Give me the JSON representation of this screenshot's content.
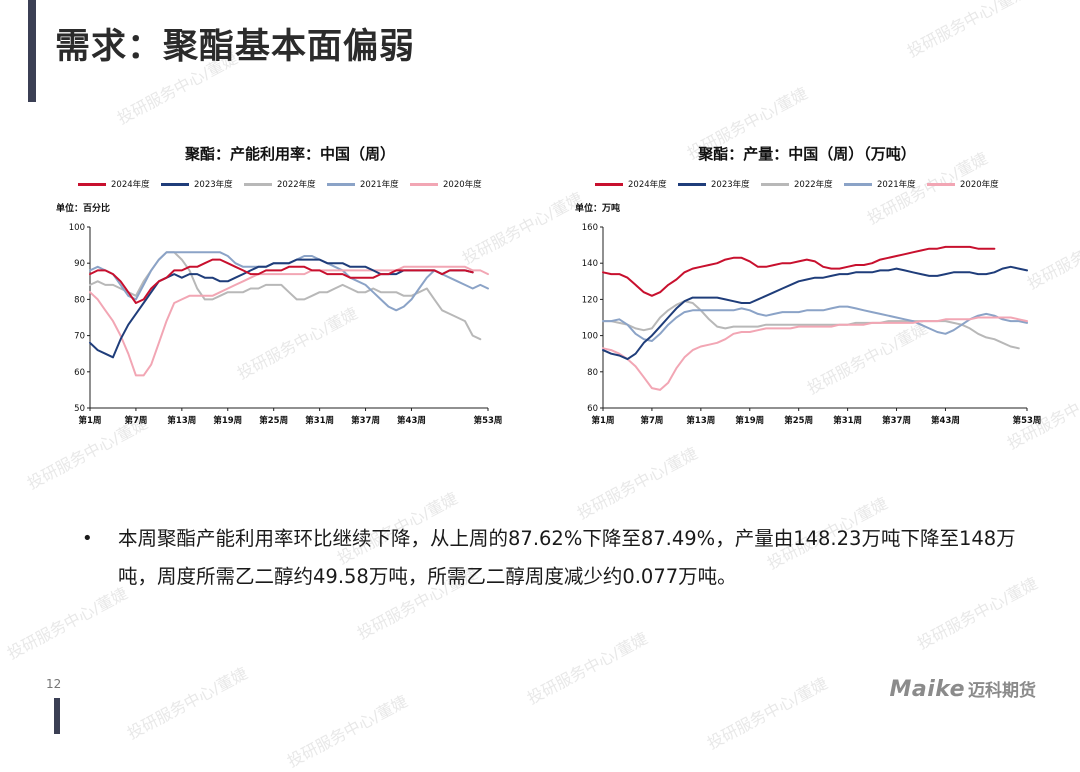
{
  "page": {
    "title": "需求：聚酯基本面偏弱",
    "page_number": "12",
    "brand_latin": "Maike",
    "brand_cn": "迈科期货",
    "watermark": "投研服务中心/董婕"
  },
  "bullets": [
    "本周聚酯产能利用率环比继续下降，从上周的87.62%下降至87.49%，产量由148.23万吨下降至148万吨，周度所需乙二醇约49.58万吨，所需乙二醇周度减少约0.077万吨。"
  ],
  "chart_data": [
    {
      "type": "line",
      "title": "聚酯：产能利用率：中国（周）",
      "unit_label": "单位：百分比",
      "xlabel": "",
      "ylabel": "",
      "x_range": [
        1,
        53
      ],
      "x_tick_values": [
        1,
        7,
        13,
        19,
        25,
        31,
        37,
        43,
        53
      ],
      "x_tick_labels": [
        "第1周",
        "第7周",
        "第13周",
        "第19周",
        "第25周",
        "第31周",
        "第37周",
        "第43周",
        "第53周"
      ],
      "ylim": [
        50,
        100
      ],
      "y_ticks": [
        50,
        60,
        70,
        80,
        90,
        100
      ],
      "grid": false,
      "legend_position": "top",
      "series": [
        {
          "name": "2024年度",
          "color": "#c8102e",
          "x": [
            1,
            2,
            3,
            4,
            5,
            6,
            7,
            8,
            9,
            10,
            11,
            12,
            13,
            14,
            15,
            16,
            17,
            18,
            19,
            20,
            21,
            22,
            23,
            24,
            25,
            26,
            27,
            28,
            29,
            30,
            31,
            32,
            33,
            34,
            35,
            36,
            37,
            38,
            39,
            40,
            41,
            42,
            43,
            44,
            45,
            46,
            47,
            48,
            49,
            50,
            51
          ],
          "values": [
            87,
            88,
            88,
            87,
            85,
            82,
            79,
            80,
            83,
            85,
            86,
            88,
            88,
            89,
            89,
            90,
            91,
            91,
            90,
            89,
            88,
            87,
            87,
            88,
            88,
            88,
            89,
            89,
            89,
            88,
            88,
            87,
            87,
            87,
            86,
            86,
            86,
            86,
            87,
            87,
            88,
            88,
            88,
            88,
            88,
            88,
            87,
            88,
            88,
            88,
            87.5
          ]
        },
        {
          "name": "2023年度",
          "color": "#1f3d7a",
          "x": [
            1,
            2,
            3,
            4,
            5,
            6,
            7,
            8,
            9,
            10,
            11,
            12,
            13,
            14,
            15,
            16,
            17,
            18,
            19,
            20,
            21,
            22,
            23,
            24,
            25,
            26,
            27,
            28,
            29,
            30,
            31,
            32,
            33,
            34,
            35,
            36,
            37,
            38,
            39,
            40,
            41,
            42,
            43,
            44,
            45,
            46,
            47,
            48,
            49,
            50,
            51
          ],
          "values": [
            68,
            66,
            65,
            64,
            69,
            73,
            76,
            79,
            82,
            85,
            86,
            87,
            86,
            87,
            87,
            86,
            86,
            85,
            85,
            86,
            87,
            88,
            89,
            89,
            90,
            90,
            90,
            91,
            91,
            91,
            91,
            90,
            90,
            90,
            89,
            89,
            89,
            88,
            87,
            87,
            87,
            88,
            88,
            88,
            88,
            88,
            87,
            88,
            88,
            88,
            87.5
          ]
        },
        {
          "name": "2022年度",
          "color": "#b8b8b8",
          "x": [
            1,
            2,
            3,
            4,
            5,
            6,
            7,
            8,
            9,
            10,
            11,
            12,
            13,
            14,
            15,
            16,
            17,
            18,
            19,
            20,
            21,
            22,
            23,
            24,
            25,
            26,
            27,
            28,
            29,
            30,
            31,
            32,
            33,
            34,
            35,
            36,
            37,
            38,
            39,
            40,
            41,
            42,
            43,
            44,
            45,
            46,
            47,
            48,
            49,
            50,
            51,
            52
          ],
          "values": [
            84,
            85,
            84,
            84,
            83,
            82,
            81,
            85,
            88,
            91,
            93,
            93,
            91,
            88,
            83,
            80,
            80,
            81,
            82,
            82,
            82,
            83,
            83,
            84,
            84,
            84,
            82,
            80,
            80,
            81,
            82,
            82,
            83,
            84,
            83,
            82,
            82,
            83,
            82,
            82,
            82,
            81,
            81,
            82,
            83,
            80,
            77,
            76,
            75,
            74,
            70,
            69
          ]
        },
        {
          "name": "2021年度",
          "color": "#8ba3c7",
          "x": [
            1,
            2,
            3,
            4,
            5,
            6,
            7,
            8,
            9,
            10,
            11,
            12,
            13,
            14,
            15,
            16,
            17,
            18,
            19,
            20,
            21,
            22,
            23,
            24,
            25,
            26,
            27,
            28,
            29,
            30,
            31,
            32,
            33,
            34,
            35,
            36,
            37,
            38,
            39,
            40,
            41,
            42,
            43,
            44,
            45,
            46,
            47,
            48,
            49,
            50,
            51,
            52,
            53
          ],
          "values": [
            88,
            89,
            88,
            87,
            84,
            81,
            80,
            84,
            88,
            91,
            93,
            93,
            93,
            93,
            93,
            93,
            93,
            93,
            92,
            90,
            89,
            89,
            89,
            89,
            90,
            90,
            90,
            91,
            92,
            92,
            91,
            90,
            89,
            88,
            86,
            85,
            84,
            82,
            80,
            78,
            77,
            78,
            80,
            83,
            86,
            88,
            87,
            86,
            85,
            84,
            83,
            84,
            83
          ]
        },
        {
          "name": "2020年度",
          "color": "#f2a6b4",
          "x": [
            1,
            2,
            3,
            4,
            5,
            6,
            7,
            8,
            9,
            10,
            11,
            12,
            13,
            14,
            15,
            16,
            17,
            18,
            19,
            20,
            21,
            22,
            23,
            24,
            25,
            26,
            27,
            28,
            29,
            30,
            31,
            32,
            33,
            34,
            35,
            36,
            37,
            38,
            39,
            40,
            41,
            42,
            43,
            44,
            45,
            46,
            47,
            48,
            49,
            50,
            51,
            52,
            53
          ],
          "values": [
            82,
            80,
            77,
            74,
            70,
            65,
            59,
            59,
            62,
            68,
            74,
            79,
            80,
            81,
            81,
            81,
            81,
            82,
            83,
            84,
            85,
            86,
            87,
            87,
            87,
            87,
            87,
            87,
            87,
            88,
            88,
            88,
            88,
            88,
            88,
            88,
            88,
            88,
            88,
            88,
            88,
            89,
            89,
            89,
            89,
            89,
            89,
            89,
            89,
            89,
            88,
            88,
            87
          ]
        }
      ]
    },
    {
      "type": "line",
      "title": "聚酯：产量：中国（周）（万吨）",
      "unit_label": "单位：万吨",
      "xlabel": "",
      "ylabel": "",
      "x_range": [
        1,
        53
      ],
      "x_tick_values": [
        1,
        7,
        13,
        19,
        25,
        31,
        37,
        43,
        53
      ],
      "x_tick_labels": [
        "第1周",
        "第7周",
        "第13周",
        "第19周",
        "第25周",
        "第31周",
        "第37周",
        "第43周",
        "第53周"
      ],
      "ylim": [
        60,
        160
      ],
      "y_ticks": [
        60,
        80,
        100,
        120,
        140,
        160
      ],
      "grid": false,
      "legend_position": "top",
      "series": [
        {
          "name": "2024年度",
          "color": "#c8102e",
          "x": [
            1,
            2,
            3,
            4,
            5,
            6,
            7,
            8,
            9,
            10,
            11,
            12,
            13,
            14,
            15,
            16,
            17,
            18,
            19,
            20,
            21,
            22,
            23,
            24,
            25,
            26,
            27,
            28,
            29,
            30,
            31,
            32,
            33,
            34,
            35,
            36,
            37,
            38,
            39,
            40,
            41,
            42,
            43,
            44,
            45,
            46,
            47,
            48,
            49
          ],
          "values": [
            135,
            134,
            134,
            132,
            128,
            124,
            122,
            124,
            128,
            131,
            135,
            137,
            138,
            139,
            140,
            142,
            143,
            143,
            141,
            138,
            138,
            139,
            140,
            140,
            141,
            142,
            141,
            138,
            137,
            137,
            138,
            139,
            139,
            140,
            142,
            143,
            144,
            145,
            146,
            147,
            148,
            148,
            149,
            149,
            149,
            149,
            148,
            148,
            148
          ]
        },
        {
          "name": "2023年度",
          "color": "#1f3d7a",
          "x": [
            1,
            2,
            3,
            4,
            5,
            6,
            7,
            8,
            9,
            10,
            11,
            12,
            13,
            14,
            15,
            16,
            17,
            18,
            19,
            20,
            21,
            22,
            23,
            24,
            25,
            26,
            27,
            28,
            29,
            30,
            31,
            32,
            33,
            34,
            35,
            36,
            37,
            38,
            39,
            40,
            41,
            42,
            43,
            44,
            45,
            46,
            47,
            48,
            49,
            50,
            51,
            52,
            53
          ],
          "values": [
            92,
            90,
            89,
            87,
            90,
            96,
            100,
            105,
            110,
            115,
            119,
            121,
            121,
            121,
            121,
            120,
            119,
            118,
            118,
            120,
            122,
            124,
            126,
            128,
            130,
            131,
            132,
            132,
            133,
            134,
            134,
            135,
            135,
            135,
            136,
            136,
            137,
            136,
            135,
            134,
            133,
            133,
            134,
            135,
            135,
            135,
            134,
            134,
            135,
            137,
            138,
            137,
            136
          ]
        },
        {
          "name": "2022年度",
          "color": "#b8b8b8",
          "x": [
            1,
            2,
            3,
            4,
            5,
            6,
            7,
            8,
            9,
            10,
            11,
            12,
            13,
            14,
            15,
            16,
            17,
            18,
            19,
            20,
            21,
            22,
            23,
            24,
            25,
            26,
            27,
            28,
            29,
            30,
            31,
            32,
            33,
            34,
            35,
            36,
            37,
            38,
            39,
            40,
            41,
            42,
            43,
            44,
            45,
            46,
            47,
            48,
            49,
            50,
            51,
            52
          ],
          "values": [
            108,
            108,
            107,
            106,
            104,
            103,
            104,
            110,
            114,
            117,
            119,
            118,
            114,
            109,
            105,
            104,
            105,
            105,
            105,
            105,
            106,
            106,
            106,
            106,
            106,
            106,
            106,
            106,
            106,
            106,
            106,
            107,
            107,
            107,
            107,
            108,
            108,
            108,
            108,
            108,
            108,
            108,
            108,
            107,
            106,
            104,
            101,
            99,
            98,
            96,
            94,
            93
          ]
        },
        {
          "name": "2021年度",
          "color": "#8ba3c7",
          "x": [
            1,
            2,
            3,
            4,
            5,
            6,
            7,
            8,
            9,
            10,
            11,
            12,
            13,
            14,
            15,
            16,
            17,
            18,
            19,
            20,
            21,
            22,
            23,
            24,
            25,
            26,
            27,
            28,
            29,
            30,
            31,
            32,
            33,
            34,
            35,
            36,
            37,
            38,
            39,
            40,
            41,
            42,
            43,
            44,
            45,
            46,
            47,
            48,
            49,
            50,
            51,
            52,
            53
          ],
          "values": [
            108,
            108,
            109,
            106,
            101,
            98,
            97,
            101,
            106,
            110,
            113,
            114,
            114,
            114,
            114,
            114,
            114,
            115,
            114,
            112,
            111,
            112,
            113,
            113,
            113,
            114,
            114,
            114,
            115,
            116,
            116,
            115,
            114,
            113,
            112,
            111,
            110,
            109,
            108,
            106,
            104,
            102,
            101,
            103,
            106,
            109,
            111,
            112,
            111,
            109,
            108,
            108,
            107
          ]
        },
        {
          "name": "2020年度",
          "color": "#f2a6b4",
          "x": [
            1,
            2,
            3,
            4,
            5,
            6,
            7,
            8,
            9,
            10,
            11,
            12,
            13,
            14,
            15,
            16,
            17,
            18,
            19,
            20,
            21,
            22,
            23,
            24,
            25,
            26,
            27,
            28,
            29,
            30,
            31,
            32,
            33,
            34,
            35,
            36,
            37,
            38,
            39,
            40,
            41,
            42,
            43,
            44,
            45,
            46,
            47,
            48,
            49,
            50,
            51,
            52,
            53
          ],
          "values": [
            93,
            92,
            90,
            87,
            83,
            77,
            71,
            70,
            74,
            82,
            88,
            92,
            94,
            95,
            96,
            98,
            101,
            102,
            102,
            103,
            104,
            104,
            104,
            104,
            105,
            105,
            105,
            105,
            105,
            106,
            106,
            106,
            106,
            107,
            107,
            107,
            107,
            107,
            107,
            108,
            108,
            108,
            109,
            109,
            109,
            109,
            110,
            110,
            110,
            110,
            110,
            109,
            108
          ]
        }
      ]
    }
  ]
}
